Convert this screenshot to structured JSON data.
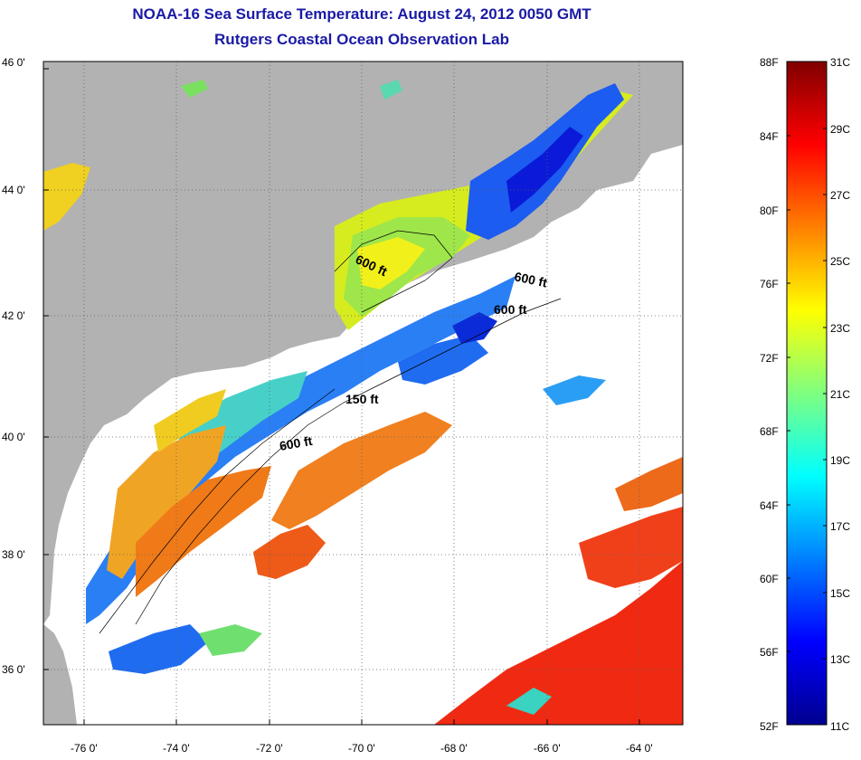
{
  "header": {
    "title": "NOAA-16 Sea Surface Temperature:  August 24, 2012 0050 GMT",
    "subtitle": "Rutgers Coastal Ocean Observation Lab"
  },
  "map": {
    "lat_labels": [
      "46 0'",
      "44 0'",
      "42 0'",
      "40 0'",
      "38 0'",
      "36 0'"
    ],
    "lon_labels": [
      "-76 0'",
      "-74 0'",
      "-72 0'",
      "-70 0'",
      "-68 0'",
      "-66 0'",
      "-64 0'"
    ],
    "contour_labels": [
      "600 ft",
      "600 ft",
      "600 ft",
      "150 ft",
      "600 ft"
    ],
    "land_color": "#b2b2b2",
    "cloud_color": "#ffffff"
  },
  "colorbar": {
    "f_labels": [
      "88F",
      "84F",
      "80F",
      "76F",
      "72F",
      "68F",
      "64F",
      "60F",
      "56F",
      "52F"
    ],
    "c_labels": [
      "31C",
      "29C",
      "27C",
      "25C",
      "23C",
      "21C",
      "19C",
      "17C",
      "15C",
      "13C",
      "11C"
    ],
    "range_c": [
      11,
      31
    ],
    "colormap": "jet"
  }
}
